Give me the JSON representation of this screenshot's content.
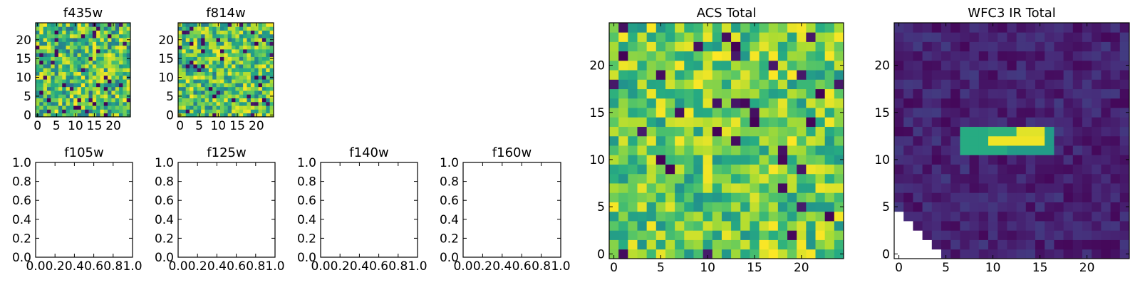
{
  "chart_data": [
    {
      "type": "heatmap",
      "title": "f435w",
      "xlim": [
        -0.5,
        24.5
      ],
      "ylim": [
        -0.5,
        24.5
      ],
      "xticks": [
        0,
        5,
        10,
        15,
        20
      ],
      "yticks": [
        0,
        5,
        10,
        15,
        20
      ],
      "grid_size": [
        25,
        25
      ],
      "colormap": "viridis",
      "content": "random noise image"
    },
    {
      "type": "heatmap",
      "title": "f814w",
      "xlim": [
        -0.5,
        24.5
      ],
      "ylim": [
        -0.5,
        24.5
      ],
      "xticks": [
        0,
        5,
        10,
        15,
        20
      ],
      "yticks": [
        0,
        5,
        10,
        15,
        20
      ],
      "grid_size": [
        25,
        25
      ],
      "colormap": "viridis",
      "content": "random noise image"
    },
    {
      "type": "empty",
      "title": "f105w",
      "xlim": [
        0,
        1
      ],
      "ylim": [
        0,
        1
      ],
      "xticks": [
        "0.0",
        "0.2",
        "0.4",
        "0.6",
        "0.8",
        "1.0"
      ],
      "yticks": [
        "0.0",
        "0.2",
        "0.4",
        "0.6",
        "0.8",
        "1.0"
      ]
    },
    {
      "type": "empty",
      "title": "f125w",
      "xlim": [
        0,
        1
      ],
      "ylim": [
        0,
        1
      ],
      "xticks": [
        "0.0",
        "0.2",
        "0.4",
        "0.6",
        "0.8",
        "1.0"
      ],
      "yticks": [
        "0.0",
        "0.2",
        "0.4",
        "0.6",
        "0.8",
        "1.0"
      ]
    },
    {
      "type": "empty",
      "title": "f140w",
      "xlim": [
        0,
        1
      ],
      "ylim": [
        0,
        1
      ],
      "xticks": [
        "0.0",
        "0.2",
        "0.4",
        "0.6",
        "0.8",
        "1.0"
      ],
      "yticks": [
        "0.0",
        "0.2",
        "0.4",
        "0.6",
        "0.8",
        "1.0"
      ]
    },
    {
      "type": "empty",
      "title": "f160w",
      "xlim": [
        0,
        1
      ],
      "ylim": [
        0,
        1
      ],
      "xticks": [
        "0.0",
        "0.2",
        "0.4",
        "0.6",
        "0.8",
        "1.0"
      ],
      "yticks": [
        "0.0",
        "0.2",
        "0.4",
        "0.6",
        "0.8",
        "1.0"
      ]
    },
    {
      "type": "heatmap",
      "title": "ACS Total",
      "xlim": [
        -0.5,
        24.5
      ],
      "ylim": [
        -0.5,
        24.5
      ],
      "xticks": [
        0,
        5,
        10,
        15,
        20
      ],
      "yticks": [
        0,
        5,
        10,
        15,
        20
      ],
      "grid_size": [
        25,
        25
      ],
      "colormap": "viridis",
      "content": "random noise image, mostly green/yellow"
    },
    {
      "type": "heatmap",
      "title": "WFC3 IR Total",
      "xlim": [
        -0.5,
        24.5
      ],
      "ylim": [
        -0.5,
        24.5
      ],
      "xticks": [
        0,
        5,
        10,
        15,
        20
      ],
      "yticks": [
        0,
        5,
        10,
        15,
        20
      ],
      "grid_size": [
        25,
        25
      ],
      "colormap": "viridis",
      "content": "dark background with bright horizontal bar at rows 11-13, columns 7-16; blank triangular region in lower-left corner"
    }
  ]
}
